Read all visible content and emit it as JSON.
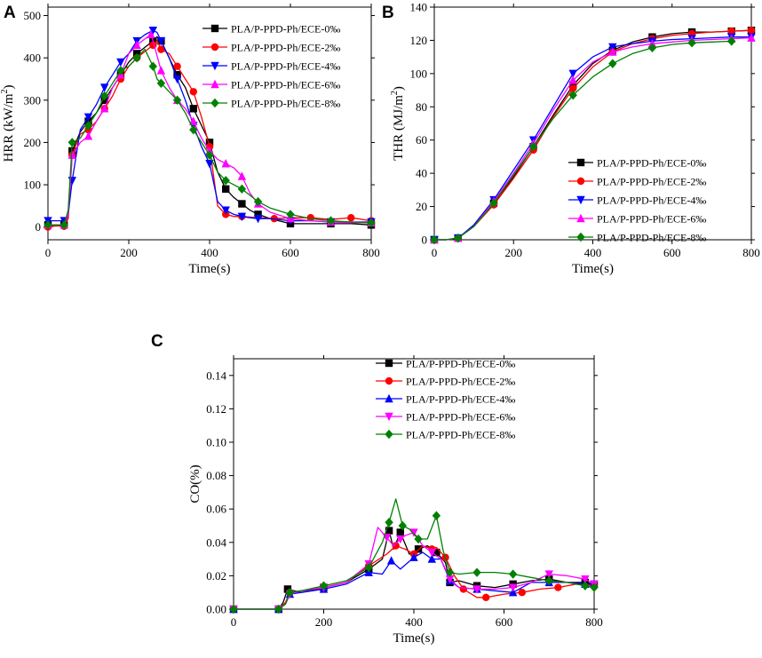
{
  "chart_data": [
    {
      "id": "A",
      "panel_label": "A",
      "type": "line",
      "xlabel": "Time(s)",
      "ylabel": "HRR (kW/m",
      "ylabel_sup": "2",
      "ylabel_close": ")",
      "xlim": [
        0,
        800
      ],
      "ylim": [
        -30,
        520
      ],
      "xticks": [
        0,
        200,
        400,
        600,
        800
      ],
      "yticks": [
        0,
        100,
        200,
        300,
        400,
        500
      ],
      "legend_position": "top-right",
      "series": [
        {
          "name": "PLA/P-PPD-Ph/ECE-0‰",
          "color": "#000000",
          "marker": "square",
          "x": [
            0,
            20,
            40,
            50,
            60,
            80,
            100,
            120,
            140,
            160,
            180,
            200,
            220,
            240,
            260,
            270,
            280,
            300,
            320,
            340,
            360,
            380,
            400,
            420,
            440,
            460,
            480,
            500,
            520,
            550,
            600,
            650,
            700,
            750,
            800
          ],
          "y": [
            5,
            3,
            5,
            30,
            180,
            225,
            250,
            270,
            300,
            330,
            360,
            390,
            410,
            425,
            440,
            450,
            440,
            400,
            360,
            330,
            280,
            240,
            200,
            130,
            90,
            70,
            55,
            40,
            30,
            20,
            8,
            8,
            8,
            8,
            5
          ]
        },
        {
          "name": "PLA/P-PPD-Ph/ECE-2‰",
          "color": "#ff0000",
          "marker": "circle",
          "x": [
            0,
            20,
            40,
            50,
            60,
            80,
            100,
            120,
            140,
            160,
            180,
            200,
            220,
            240,
            260,
            270,
            280,
            300,
            320,
            340,
            360,
            380,
            400,
            420,
            440,
            460,
            480,
            520,
            560,
            600,
            650,
            700,
            750,
            800
          ],
          "y": [
            0,
            3,
            2,
            20,
            170,
            220,
            230,
            250,
            280,
            310,
            350,
            380,
            400,
            415,
            430,
            440,
            420,
            410,
            380,
            350,
            320,
            260,
            190,
            50,
            30,
            25,
            25,
            22,
            20,
            22,
            22,
            18,
            22,
            15
          ]
        },
        {
          "name": "PLA/P-PPD-Ph/ECE-4‰",
          "color": "#0000ff",
          "marker": "triangle-down",
          "x": [
            0,
            20,
            40,
            50,
            60,
            80,
            100,
            120,
            140,
            160,
            180,
            200,
            220,
            240,
            260,
            270,
            280,
            300,
            320,
            340,
            360,
            380,
            400,
            420,
            440,
            460,
            480,
            500,
            520,
            550,
            600,
            650,
            700,
            750,
            800
          ],
          "y": [
            15,
            15,
            15,
            30,
            110,
            230,
            260,
            290,
            330,
            360,
            390,
            410,
            440,
            455,
            465,
            460,
            440,
            400,
            350,
            300,
            240,
            190,
            150,
            60,
            40,
            30,
            25,
            22,
            20,
            20,
            15,
            15,
            12,
            12,
            12
          ]
        },
        {
          "name": "PLA/P-PPD-Ph/ECE-6‰",
          "color": "#ff00ff",
          "marker": "triangle-up",
          "x": [
            0,
            20,
            40,
            50,
            60,
            80,
            100,
            120,
            140,
            160,
            180,
            200,
            220,
            240,
            255,
            260,
            280,
            300,
            320,
            340,
            360,
            380,
            400,
            420,
            440,
            460,
            480,
            500,
            520,
            550,
            600,
            650,
            700,
            750,
            800
          ],
          "y": [
            5,
            5,
            5,
            30,
            170,
            200,
            215,
            250,
            280,
            330,
            360,
            410,
            430,
            445,
            455,
            440,
            370,
            330,
            300,
            280,
            250,
            210,
            180,
            160,
            150,
            140,
            120,
            80,
            55,
            35,
            20,
            15,
            12,
            10,
            10
          ]
        },
        {
          "name": "PLA/P-PPD-Ph/ECE-8‰",
          "color": "#008000",
          "marker": "diamond",
          "x": [
            0,
            20,
            40,
            50,
            60,
            80,
            100,
            120,
            140,
            160,
            180,
            200,
            220,
            240,
            260,
            270,
            280,
            300,
            320,
            340,
            360,
            380,
            400,
            420,
            440,
            460,
            480,
            500,
            520,
            550,
            600,
            650,
            700,
            750,
            800
          ],
          "y": [
            5,
            5,
            5,
            40,
            200,
            210,
            240,
            270,
            310,
            340,
            370,
            380,
            400,
            420,
            380,
            350,
            340,
            320,
            300,
            270,
            230,
            200,
            170,
            130,
            110,
            100,
            90,
            75,
            60,
            45,
            30,
            20,
            15,
            12,
            10
          ]
        }
      ]
    },
    {
      "id": "B",
      "panel_label": "B",
      "type": "line",
      "xlabel": "Time(s)",
      "ylabel": "THR (MJ/m",
      "ylabel_sup": "2",
      "ylabel_close": ")",
      "xlim": [
        0,
        800
      ],
      "ylim": [
        0,
        140
      ],
      "xticks": [
        0,
        200,
        400,
        600,
        800
      ],
      "yticks": [
        0,
        20,
        40,
        60,
        80,
        100,
        120,
        140
      ],
      "legend_position": "bottom-right",
      "series": [
        {
          "name": "PLA/P-PPD-Ph/ECE-0‰",
          "color": "#000000",
          "marker": "square",
          "x": [
            0,
            30,
            60,
            100,
            150,
            200,
            250,
            300,
            350,
            400,
            450,
            500,
            550,
            600,
            650,
            700,
            750,
            800
          ],
          "y": [
            0,
            0,
            1,
            8,
            22,
            38,
            56,
            75,
            93,
            106,
            114,
            119,
            122,
            124,
            125,
            125,
            125.5,
            126
          ]
        },
        {
          "name": "PLA/P-PPD-Ph/ECE-2‰",
          "color": "#ff0000",
          "marker": "circle",
          "x": [
            0,
            30,
            60,
            100,
            150,
            200,
            250,
            300,
            350,
            400,
            450,
            500,
            550,
            600,
            650,
            700,
            750,
            800
          ],
          "y": [
            0,
            0,
            1,
            8,
            21,
            37,
            54,
            74,
            91,
            104,
            113,
            118,
            121,
            123,
            124,
            125,
            125.5,
            126
          ]
        },
        {
          "name": "PLA/P-PPD-Ph/ECE-4‰",
          "color": "#0000ff",
          "marker": "triangle-down",
          "x": [
            0,
            30,
            60,
            100,
            150,
            200,
            250,
            300,
            350,
            400,
            450,
            500,
            550,
            600,
            650,
            700,
            750,
            800
          ],
          "y": [
            0,
            0,
            1,
            9,
            24,
            42,
            60,
            80,
            100,
            110,
            116,
            118,
            119.5,
            120.5,
            121,
            121.5,
            122,
            122
          ]
        },
        {
          "name": "PLA/P-PPD-Ph/ECE-6‰",
          "color": "#ff00ff",
          "marker": "triangle-up",
          "x": [
            0,
            30,
            60,
            100,
            150,
            200,
            250,
            300,
            350,
            400,
            450,
            500,
            550,
            600,
            650,
            700,
            750,
            800
          ],
          "y": [
            0,
            0,
            1,
            8,
            23,
            40,
            58,
            78,
            96,
            107,
            113,
            116,
            118,
            119,
            120,
            120.5,
            121,
            121.5
          ]
        },
        {
          "name": "PLA/P-PPD-Ph/ECE-8‰",
          "color": "#008000",
          "marker": "diamond",
          "x": [
            0,
            30,
            60,
            100,
            150,
            200,
            250,
            300,
            350,
            400,
            450,
            500,
            550,
            600,
            650,
            700,
            750
          ],
          "y": [
            0,
            0,
            1,
            8,
            22,
            39,
            56,
            73,
            87,
            98,
            106,
            112,
            115.5,
            117.5,
            118.5,
            119,
            119.5
          ]
        }
      ]
    },
    {
      "id": "C",
      "panel_label": "C",
      "type": "line",
      "xlabel": "Time(s)",
      "ylabel": "CO(%)",
      "xlim": [
        0,
        800
      ],
      "ylim": [
        0,
        0.15
      ],
      "xticks": [
        0,
        200,
        400,
        600,
        800
      ],
      "yticks": [
        0.0,
        0.02,
        0.04,
        0.06,
        0.08,
        0.1,
        0.12,
        0.14
      ],
      "legend_position": "top-right",
      "series": [
        {
          "name": "PLA/P-PPD-Ph/ECE-0‰",
          "color": "#000000",
          "marker": "square",
          "x": [
            0,
            60,
            100,
            110,
            120,
            150,
            200,
            250,
            300,
            330,
            345,
            355,
            370,
            390,
            410,
            430,
            450,
            470,
            480,
            500,
            540,
            580,
            620,
            660,
            700,
            740,
            780,
            800
          ],
          "y": [
            0,
            0,
            0,
            0.004,
            0.012,
            0.01,
            0.013,
            0.016,
            0.024,
            0.03,
            0.047,
            0.036,
            0.046,
            0.033,
            0.036,
            0.038,
            0.034,
            0.028,
            0.016,
            0.017,
            0.014,
            0.013,
            0.015,
            0.017,
            0.018,
            0.016,
            0.016,
            0.015
          ]
        },
        {
          "name": "PLA/P-PPD-Ph/ECE-2‰",
          "color": "#ff0000",
          "marker": "circle",
          "x": [
            0,
            60,
            100,
            115,
            125,
            150,
            200,
            250,
            300,
            340,
            360,
            380,
            400,
            420,
            440,
            450,
            470,
            490,
            510,
            540,
            560,
            600,
            640,
            680,
            720,
            760,
            800
          ],
          "y": [
            0,
            0,
            0,
            0.004,
            0.01,
            0.011,
            0.013,
            0.016,
            0.026,
            0.033,
            0.038,
            0.036,
            0.033,
            0.038,
            0.036,
            0.037,
            0.031,
            0.02,
            0.012,
            0.007,
            0.007,
            0.009,
            0.01,
            0.012,
            0.013,
            0.015,
            0.014
          ]
        },
        {
          "name": "PLA/P-PPD-Ph/ECE-4‰",
          "color": "#0000ff",
          "marker": "triangle-up",
          "x": [
            0,
            60,
            100,
            115,
            125,
            150,
            200,
            250,
            300,
            330,
            350,
            370,
            400,
            420,
            440,
            460,
            480,
            500,
            540,
            580,
            620,
            660,
            700,
            740,
            780,
            800
          ],
          "y": [
            0,
            0,
            0,
            0.003,
            0.009,
            0.01,
            0.012,
            0.015,
            0.022,
            0.021,
            0.029,
            0.024,
            0.031,
            0.034,
            0.03,
            0.03,
            0.017,
            0.013,
            0.012,
            0.011,
            0.01,
            0.016,
            0.016,
            0.016,
            0.015,
            0.015
          ]
        },
        {
          "name": "PLA/P-PPD-Ph/ECE-6‰",
          "color": "#ff00ff",
          "marker": "triangle-down",
          "x": [
            0,
            60,
            100,
            115,
            125,
            150,
            200,
            250,
            300,
            320,
            340,
            355,
            370,
            380,
            400,
            420,
            440,
            460,
            480,
            500,
            540,
            580,
            620,
            660,
            700,
            740,
            780,
            800
          ],
          "y": [
            0,
            0,
            0,
            0.003,
            0.009,
            0.011,
            0.013,
            0.016,
            0.027,
            0.049,
            0.043,
            0.038,
            0.042,
            0.044,
            0.046,
            0.038,
            0.034,
            0.03,
            0.018,
            0.013,
            0.012,
            0.012,
            0.013,
            0.016,
            0.021,
            0.02,
            0.018,
            0.015
          ]
        },
        {
          "name": "PLA/P-PPD-Ph/ECE-8‰",
          "color": "#008000",
          "marker": "diamond",
          "x": [
            0,
            60,
            100,
            115,
            125,
            150,
            200,
            250,
            300,
            330,
            345,
            360,
            375,
            390,
            410,
            430,
            450,
            465,
            480,
            500,
            540,
            580,
            620,
            660,
            700,
            740,
            780,
            800
          ],
          "y": [
            0,
            0,
            0,
            0.003,
            0.01,
            0.011,
            0.014,
            0.017,
            0.025,
            0.04,
            0.052,
            0.066,
            0.05,
            0.048,
            0.042,
            0.042,
            0.056,
            0.035,
            0.022,
            0.021,
            0.022,
            0.022,
            0.021,
            0.019,
            0.017,
            0.016,
            0.014,
            0.013
          ]
        }
      ]
    }
  ]
}
